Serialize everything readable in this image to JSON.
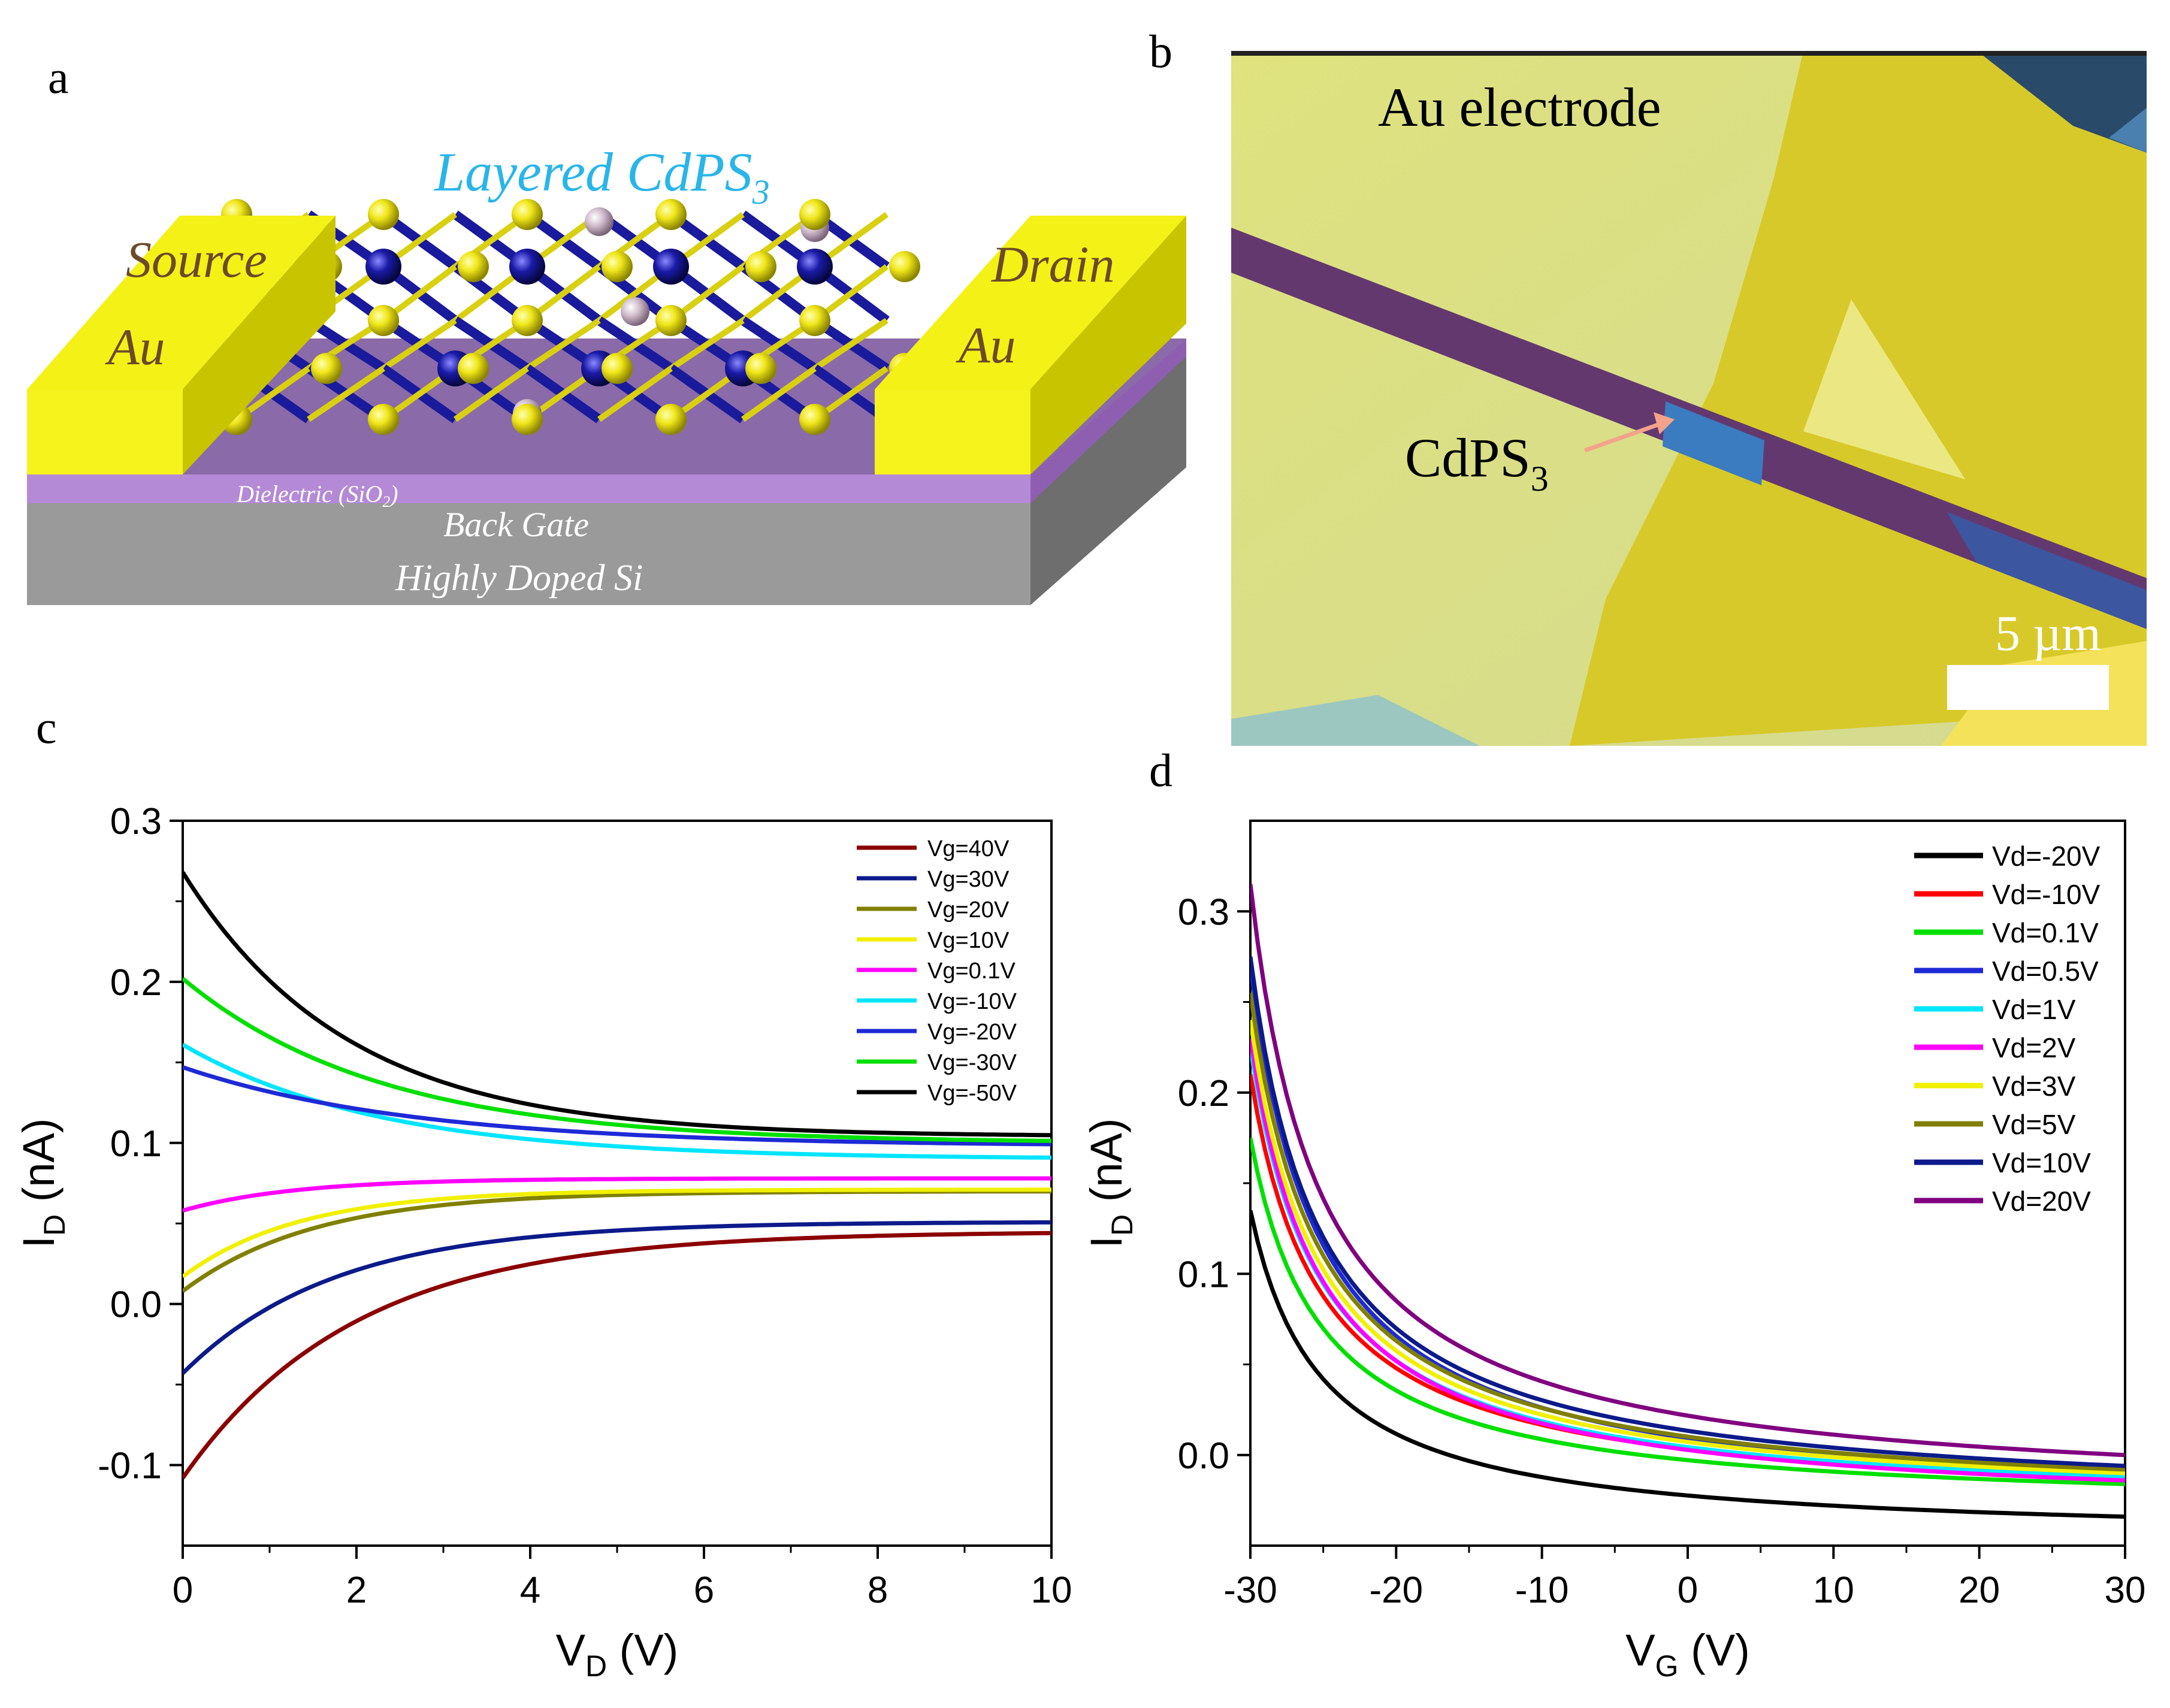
{
  "panels": {
    "a": {
      "letter": "a",
      "title": "Layered CdPS",
      "title_sub": "3",
      "source_top": "Source",
      "source_bottom": "Au",
      "drain_top": "Drain",
      "drain_bottom": "Au",
      "dielectric": "Dielectric (SiO",
      "dielectric_sub": "2",
      "dielectric_close": ")",
      "back_gate": "Back Gate",
      "substrate": "Highly Doped Si",
      "colors": {
        "gold": "#f2ef11",
        "gold_dark": "#c9c400",
        "sulfur": "#e8e012",
        "cadmium": "#1a1a9c",
        "phosphorus": "#c7b3c4",
        "dielectric": "#b48ad6",
        "silicon": "#9a9a9a"
      }
    },
    "b": {
      "letter": "b",
      "electrode_label": "Au electrode",
      "flake_label": "CdPS",
      "flake_sub": "3",
      "scale_label": "5 µm",
      "colors": {
        "background": "#d9dd86",
        "gold": "#d6c92a",
        "strip": "#63386f",
        "flake": "#3b7bbf",
        "arrow": "#f3a38a"
      }
    },
    "c": {
      "letter": "c",
      "chart_data": {
        "type": "line",
        "xlabel": "V",
        "xlabel_sub": "D",
        "xlabel_unit": " (V)",
        "ylabel": "I",
        "ylabel_sub": "D",
        "ylabel_unit": " (nA)",
        "xlim": [
          0,
          10
        ],
        "ylim": [
          -0.15,
          0.3
        ],
        "xticks": [
          "0",
          "2",
          "4",
          "6",
          "8",
          "10"
        ],
        "yticks": [
          "-0.1",
          "0.0",
          "0.1",
          "0.2",
          "0.3"
        ],
        "legend_position": "top-right",
        "series": [
          {
            "name": "Vg=40V",
            "color": "#8b0000",
            "start": -0.108,
            "end": 0.045,
            "decay": 2.3
          },
          {
            "name": "Vg=30V",
            "color": "#0c1a8a",
            "start": -0.043,
            "end": 0.051,
            "decay": 2.6
          },
          {
            "name": "Vg=20V",
            "color": "#808000",
            "start": 0.008,
            "end": 0.07,
            "decay": 3.0
          },
          {
            "name": "Vg=10V",
            "color": "#f0f000",
            "start": 0.017,
            "end": 0.071,
            "decay": 3.4
          },
          {
            "name": "Vg=0.1V",
            "color": "#ff00ff",
            "start": 0.058,
            "end": 0.078,
            "decay": 3.5
          },
          {
            "name": "Vg=-10V",
            "color": "#00e5ff",
            "start": 0.161,
            "end": 0.09,
            "decay": 2.0
          },
          {
            "name": "Vg=-20V",
            "color": "#1e2ad6",
            "start": 0.147,
            "end": 0.098,
            "decay": 1.7
          },
          {
            "name": "Vg=-30V",
            "color": "#00e000",
            "start": 0.202,
            "end": 0.1,
            "decay": 2.0
          },
          {
            "name": "Vg=-50V",
            "color": "#000000",
            "start": 0.268,
            "end": 0.104,
            "decay": 2.4
          }
        ]
      }
    },
    "d": {
      "letter": "d",
      "chart_data": {
        "type": "line",
        "xlabel": "V",
        "xlabel_sub": "G",
        "xlabel_unit": " (V)",
        "ylabel": "I",
        "ylabel_sub": "D",
        "ylabel_unit": " (nA)",
        "xlim": [
          -30,
          30
        ],
        "ylim": [
          -0.05,
          0.35
        ],
        "xticks": [
          "-30",
          "-20",
          "-10",
          "0",
          "10",
          "20",
          "30"
        ],
        "yticks": [
          "0.0",
          "0.1",
          "0.2",
          "0.3"
        ],
        "legend_position": "top-right",
        "series": [
          {
            "name": "Vd=-20V",
            "color": "#000000",
            "start": 0.135,
            "end": -0.034
          },
          {
            "name": "Vd=-10V",
            "color": "#ff0000",
            "start": 0.21,
            "end": -0.012
          },
          {
            "name": "Vd=0.1V",
            "color": "#00e000",
            "start": 0.175,
            "end": -0.016
          },
          {
            "name": "Vd=0.5V",
            "color": "#1e2ad6",
            "start": 0.27,
            "end": -0.01
          },
          {
            "name": "Vd=1V",
            "color": "#00e5ff",
            "start": 0.225,
            "end": -0.012
          },
          {
            "name": "Vd=2V",
            "color": "#ff00ff",
            "start": 0.23,
            "end": -0.014
          },
          {
            "name": "Vd=3V",
            "color": "#f0f000",
            "start": 0.24,
            "end": -0.01
          },
          {
            "name": "Vd=5V",
            "color": "#808000",
            "start": 0.255,
            "end": -0.008
          },
          {
            "name": "Vd=10V",
            "color": "#0c1a8a",
            "start": 0.275,
            "end": -0.006
          },
          {
            "name": "Vd=20V",
            "color": "#800080",
            "start": 0.315,
            "end": 0.0
          }
        ]
      }
    }
  }
}
